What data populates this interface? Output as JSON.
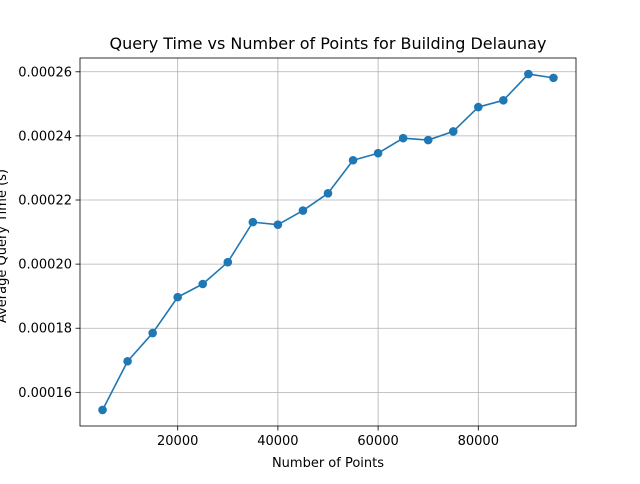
{
  "chart_data": {
    "type": "line",
    "title": "Query Time vs Number of Points for Building Delaunay",
    "xlabel": "Number of Points",
    "ylabel": "Average Query Time (s)",
    "x": [
      5000,
      10000,
      15000,
      20000,
      25000,
      30000,
      35000,
      40000,
      45000,
      50000,
      55000,
      60000,
      65000,
      70000,
      75000,
      80000,
      85000,
      90000,
      95000
    ],
    "series": [
      {
        "values": [
          0.0001545,
          0.0001697,
          0.0001785,
          0.0001897,
          0.0001938,
          0.0002006,
          0.0002131,
          0.0002123,
          0.0002167,
          0.0002221,
          0.0002324,
          0.0002346,
          0.0002393,
          0.0002387,
          0.0002414,
          0.000249,
          0.0002511,
          0.0002593,
          0.0002581
        ],
        "color": "#1f77b4",
        "marker": "circle"
      }
    ],
    "xlim": [
      500,
      99500
    ],
    "ylim": [
      0.0001495,
      0.0002643
    ],
    "xticks": [
      20000,
      40000,
      60000,
      80000
    ],
    "xtick_labels": [
      "20000",
      "40000",
      "60000",
      "80000"
    ],
    "yticks": [
      0.00016,
      0.00018,
      0.0002,
      0.00022,
      0.00024,
      0.00026
    ],
    "ytick_labels": [
      "0.00016",
      "0.00018",
      "0.00020",
      "0.00022",
      "0.00024",
      "0.00026"
    ],
    "grid": true,
    "legend": "none"
  }
}
